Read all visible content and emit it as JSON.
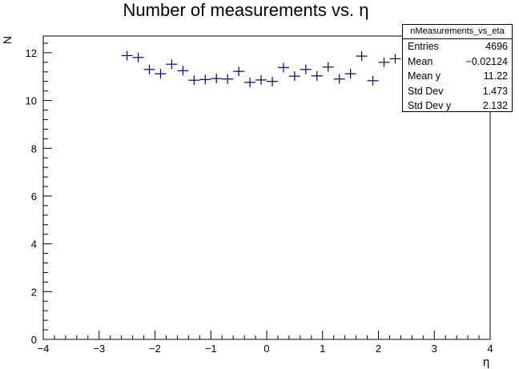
{
  "chart_data": {
    "type": "scatter",
    "title": "Number of measurements vs. η",
    "xlabel": "η",
    "ylabel": "N",
    "xlim": [
      -4,
      4
    ],
    "ylim": [
      0,
      12.7
    ],
    "x_ticks": [
      -4,
      -3,
      -2,
      -1,
      0,
      1,
      2,
      3,
      4
    ],
    "x_tick_labels": [
      "−4",
      "−3",
      "−2",
      "−1",
      "0",
      "1",
      "2",
      "3",
      "4"
    ],
    "y_ticks": [
      0,
      2,
      4,
      6,
      8,
      10,
      12
    ],
    "y_tick_labels": [
      "0",
      "2",
      "4",
      "6",
      "8",
      "10",
      "12"
    ],
    "bin_width": 0.2,
    "marker_color": "#000080",
    "grid": false,
    "legend": "none",
    "series": [
      {
        "x": [
          -2.5,
          -2.3,
          -2.1,
          -1.9,
          -1.7,
          -1.5,
          -1.3,
          -1.1,
          -0.9,
          -0.7,
          -0.5,
          -0.3,
          -0.1,
          0.1,
          0.3,
          0.5,
          0.7,
          0.9,
          1.1,
          1.3,
          1.5,
          1.7,
          1.9,
          2.1,
          2.3
        ],
        "y": [
          11.88,
          11.8,
          11.3,
          11.12,
          11.52,
          11.25,
          10.85,
          10.88,
          10.92,
          10.9,
          11.22,
          10.76,
          10.86,
          10.8,
          11.38,
          11.02,
          11.3,
          11.03,
          11.4,
          10.9,
          11.12,
          11.86,
          10.83,
          11.6,
          11.75
        ]
      }
    ]
  },
  "stats_box": {
    "title": "nMeasurements_vs_eta",
    "rows": [
      {
        "label": "Entries",
        "value": "4696"
      },
      {
        "label": "Mean",
        "value": "−0.02124"
      },
      {
        "label": "Mean y",
        "value": "11.22"
      },
      {
        "label": "Std Dev",
        "value": "1.473"
      },
      {
        "label": "Std Dev y",
        "value": "2.132"
      }
    ]
  }
}
